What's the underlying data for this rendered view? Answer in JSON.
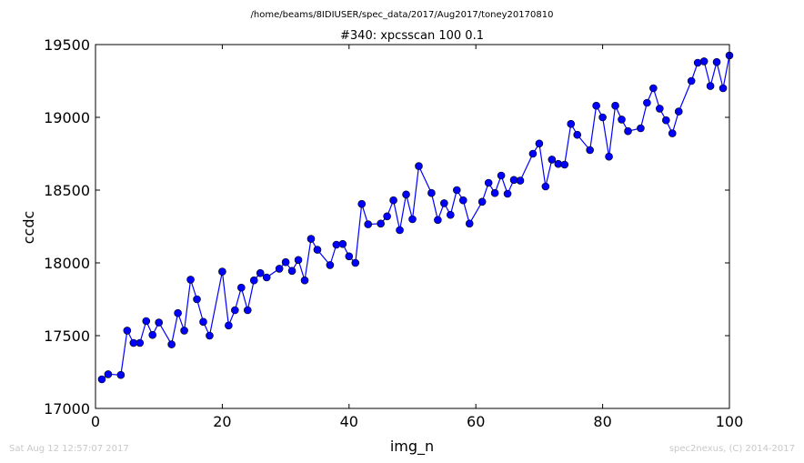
{
  "header": {
    "path": "/home/beams/8IDIUSER/spec_data/2017/Aug2017/toney20170810"
  },
  "footer": {
    "timestamp": "Sat Aug 12 12:57:07 2017",
    "credit": "spec2nexus, (C) 2014-2017"
  },
  "colors": {
    "series": "#0000ff",
    "marker_edge": "#000000",
    "footer_text": "#c8c8c8"
  },
  "chart_data": {
    "type": "line",
    "title": "#340: xpcsscan 100 0.1",
    "xlabel": "img_n",
    "ylabel": "ccdc",
    "xlim": [
      0,
      100
    ],
    "ylim": [
      17000,
      19500
    ],
    "xticks": [
      0,
      20,
      40,
      60,
      80,
      100
    ],
    "yticks": [
      17000,
      17500,
      18000,
      18500,
      19000,
      19500
    ],
    "grid": false,
    "legend": "none",
    "marker": "circle",
    "series": [
      {
        "x": [
          1,
          2,
          4,
          5,
          6,
          7,
          8,
          9,
          10,
          12,
          13,
          14,
          15,
          16,
          17,
          18,
          20,
          21,
          22,
          23,
          24,
          25,
          26,
          27,
          29,
          30,
          31,
          32,
          33,
          34,
          35,
          37,
          38,
          39,
          40,
          41,
          42,
          43,
          45,
          46,
          47,
          48,
          49,
          50,
          51,
          53,
          54,
          55,
          56,
          57,
          58,
          59,
          61,
          62,
          63,
          64,
          65,
          66,
          67,
          69,
          70,
          71,
          72,
          73,
          74,
          75,
          76,
          78,
          79,
          80,
          81,
          82,
          83,
          84,
          86,
          87,
          88,
          89,
          90,
          91,
          92,
          94,
          95,
          96,
          97,
          98,
          99,
          100
        ],
        "y": [
          17200,
          17235,
          17230,
          17535,
          17450,
          17450,
          17600,
          17505,
          17590,
          17440,
          17655,
          17535,
          17885,
          17750,
          17595,
          17500,
          17940,
          17570,
          17675,
          17830,
          17675,
          17880,
          17930,
          17900,
          17960,
          18005,
          17945,
          18020,
          17880,
          18165,
          18090,
          17985,
          18125,
          18130,
          18045,
          18000,
          18405,
          18265,
          18270,
          18320,
          18430,
          18225,
          18470,
          18300,
          18665,
          18480,
          18295,
          18410,
          18330,
          18500,
          18430,
          18270,
          18420,
          18550,
          18480,
          18600,
          18475,
          18570,
          18565,
          18750,
          18820,
          18525,
          18710,
          18680,
          18675,
          18955,
          18880,
          18775,
          19080,
          19000,
          18730,
          19080,
          18985,
          18905,
          18925,
          19100,
          19200,
          19060,
          18980,
          18890,
          19040,
          19250,
          19375,
          19385,
          19215,
          19380,
          19200,
          19425
        ]
      }
    ]
  }
}
